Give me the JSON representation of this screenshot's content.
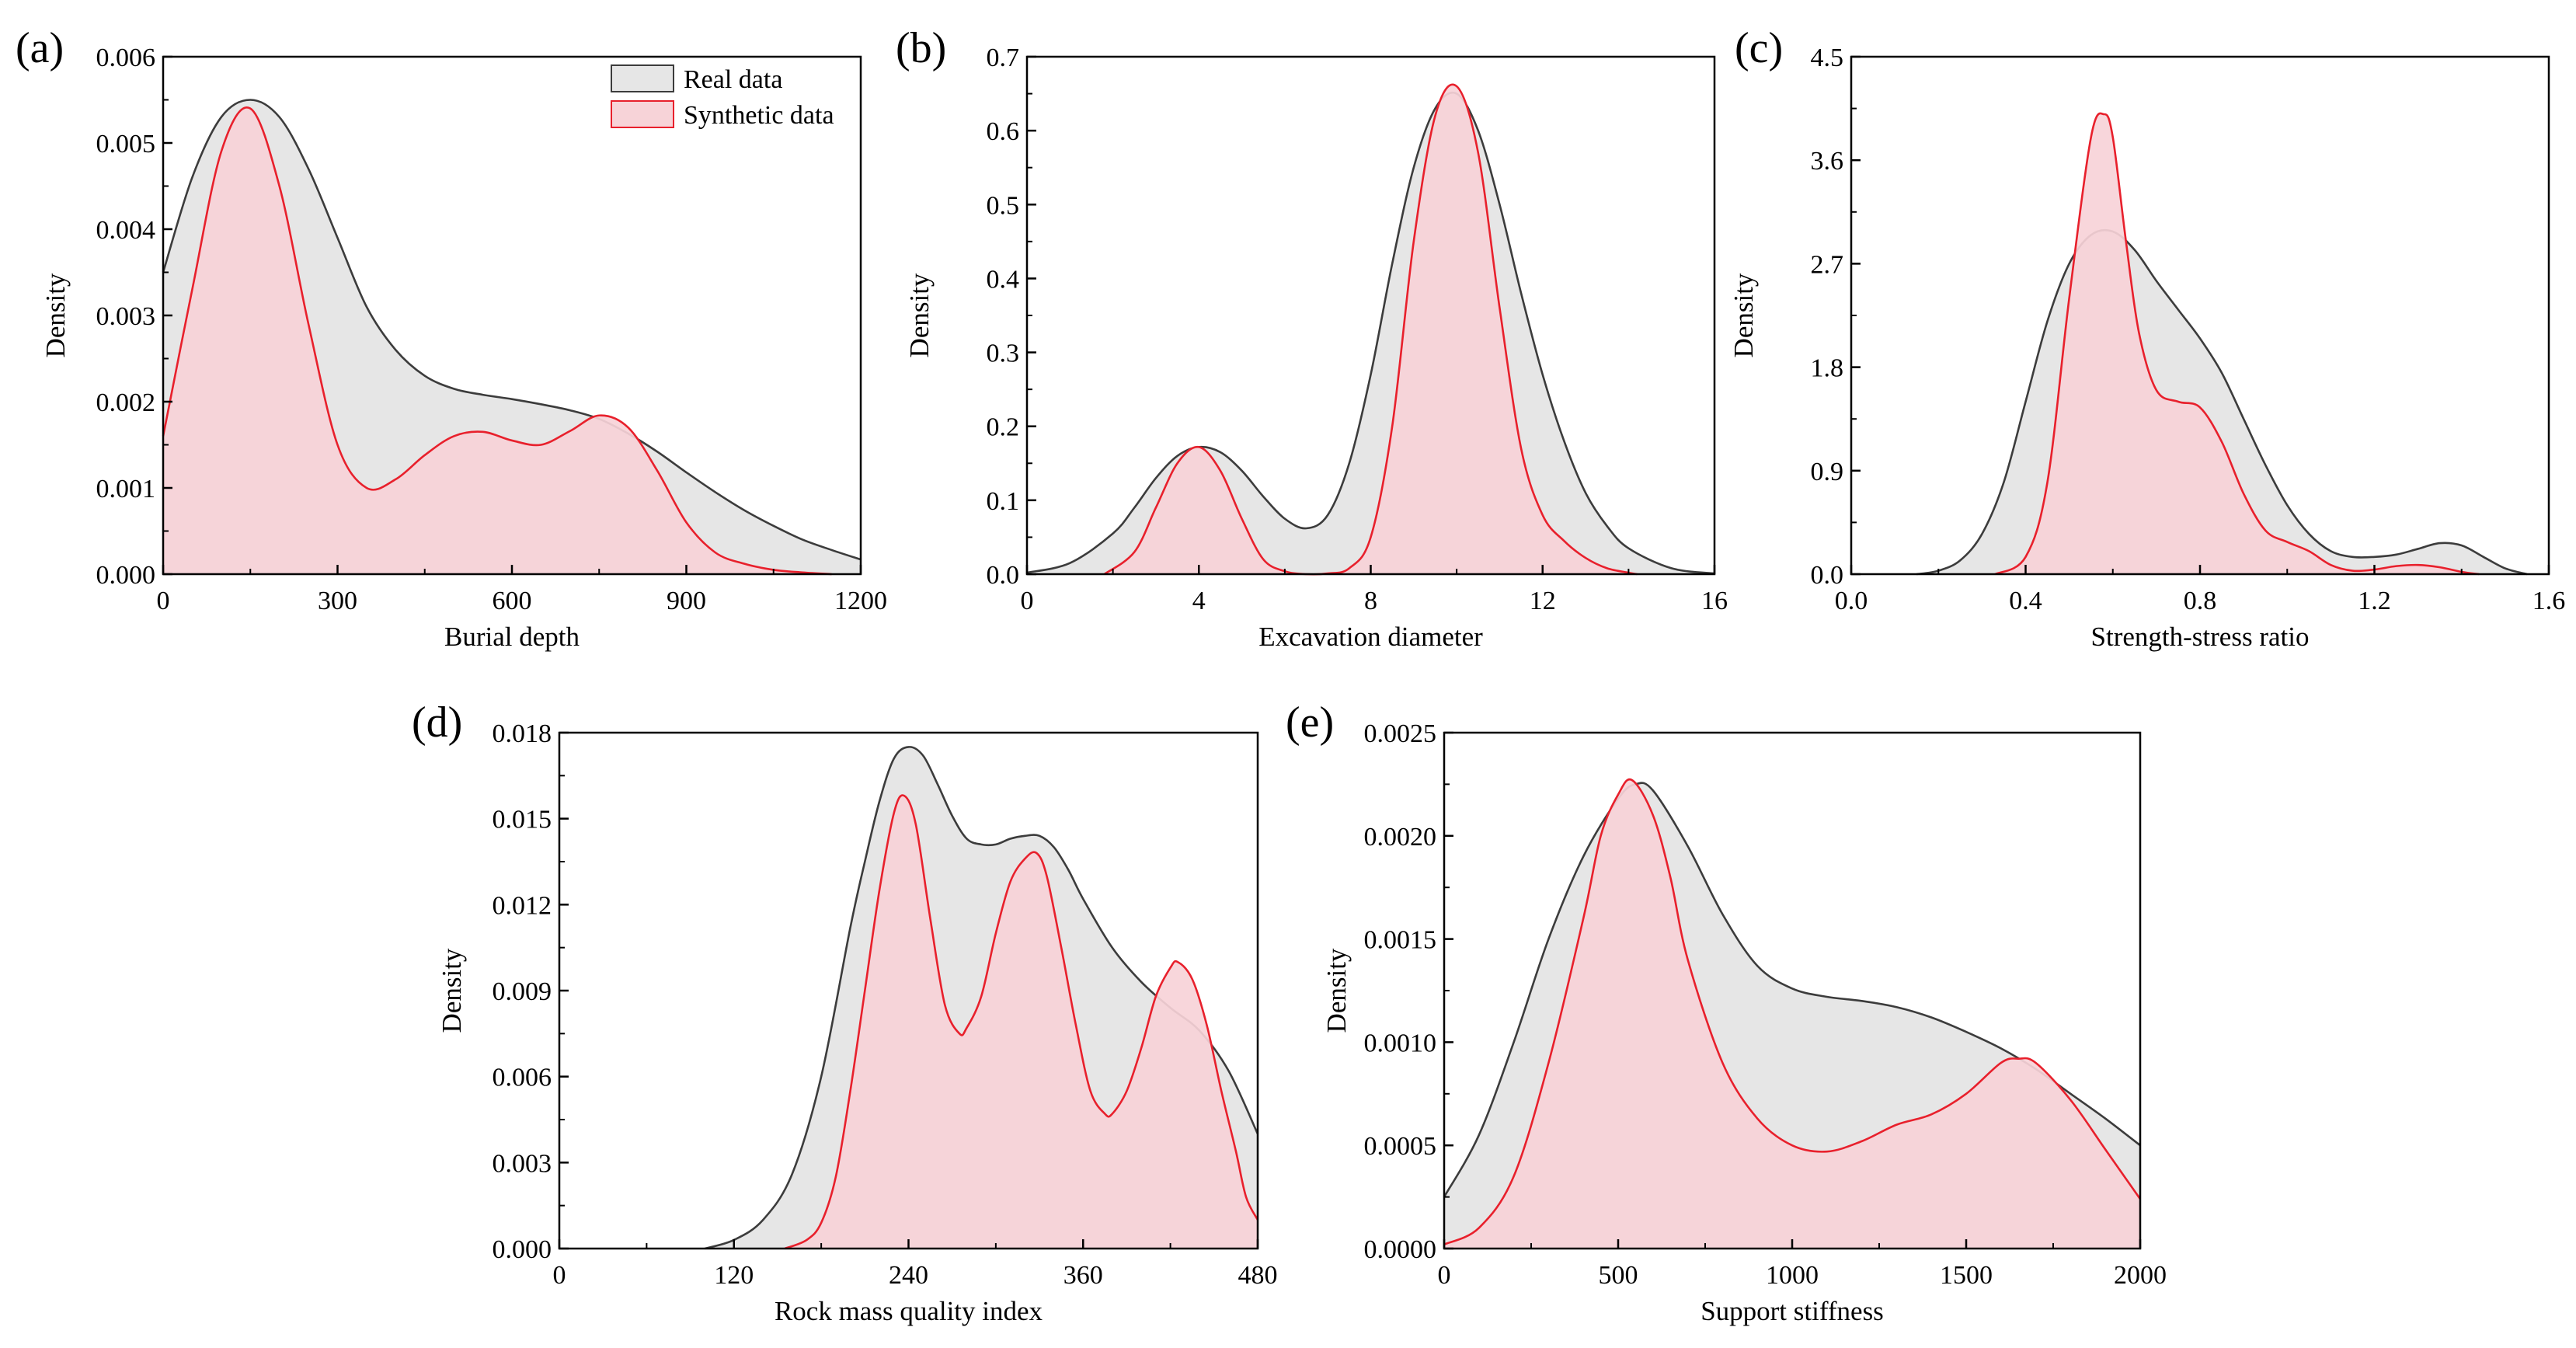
{
  "legend": {
    "real_label": "Real data",
    "synthetic_label": "Synthetic data"
  },
  "colors": {
    "real_fill": "#e6e6e6",
    "real_line": "#3c3c3c",
    "synthetic_fill": "#f7d3d8",
    "synthetic_line": "#e8202c"
  },
  "chart_data": [
    {
      "panel": "(a)",
      "type": "area",
      "title": "",
      "xlabel": "Burial depth",
      "ylabel": "Density",
      "xlim": [
        0,
        1200
      ],
      "ylim": [
        0,
        0.006
      ],
      "xticks": [
        0,
        300,
        600,
        900,
        1200
      ],
      "xtick_labels": [
        "0",
        "300",
        "600",
        "900",
        "1200"
      ],
      "yticks": [
        0,
        0.001,
        0.002,
        0.003,
        0.004,
        0.005,
        0.006
      ],
      "ytick_labels": [
        "0.000",
        "0.001",
        "0.002",
        "0.003",
        "0.004",
        "0.005",
        "0.006"
      ],
      "legend_position": "top-right",
      "series": [
        {
          "name": "Real data",
          "x": [
            0,
            50,
            100,
            150,
            200,
            250,
            300,
            350,
            400,
            450,
            500,
            550,
            600,
            650,
            700,
            750,
            800,
            850,
            900,
            950,
            1000,
            1050,
            1100,
            1150,
            1200
          ],
          "y": [
            0.0035,
            0.0046,
            0.0053,
            0.0055,
            0.0053,
            0.0047,
            0.0039,
            0.0031,
            0.0026,
            0.0023,
            0.00215,
            0.00208,
            0.00203,
            0.00197,
            0.0019,
            0.0018,
            0.00163,
            0.00142,
            0.00118,
            0.00095,
            0.00074,
            0.00056,
            0.0004,
            0.00028,
            0.00017
          ]
        },
        {
          "name": "Synthetic data",
          "x": [
            0,
            50,
            100,
            150,
            200,
            250,
            300,
            350,
            400,
            450,
            500,
            550,
            600,
            650,
            700,
            750,
            800,
            850,
            900,
            950,
            1000,
            1050,
            1100,
            1150
          ],
          "y": [
            0.0016,
            0.0033,
            0.0049,
            0.0054,
            0.0045,
            0.0029,
            0.0015,
            0.001,
            0.0011,
            0.00138,
            0.0016,
            0.00165,
            0.00155,
            0.0015,
            0.00166,
            0.00184,
            0.0017,
            0.0012,
            0.0006,
            0.00025,
            0.00012,
            5e-05,
            2e-05,
            0
          ]
        }
      ]
    },
    {
      "panel": "(b)",
      "type": "area",
      "title": "",
      "xlabel": "Excavation diameter",
      "ylabel": "Density",
      "xlim": [
        0,
        16
      ],
      "ylim": [
        0,
        0.7
      ],
      "xticks": [
        0,
        4,
        8,
        12,
        16
      ],
      "xtick_labels": [
        "0",
        "4",
        "8",
        "12",
        "16"
      ],
      "yticks": [
        0,
        0.1,
        0.2,
        0.3,
        0.4,
        0.5,
        0.6,
        0.7
      ],
      "ytick_labels": [
        "0.0",
        "0.1",
        "0.2",
        "0.3",
        "0.4",
        "0.5",
        "0.6",
        "0.7"
      ],
      "series": [
        {
          "name": "Real data",
          "x": [
            0,
            1,
            2,
            2.5,
            3,
            3.5,
            4,
            4.5,
            5,
            5.5,
            6,
            6.5,
            7,
            7.5,
            8,
            8.5,
            9,
            9.5,
            10,
            10.5,
            11,
            11.5,
            12,
            12.5,
            13,
            13.5,
            14,
            15,
            16
          ],
          "y": [
            0.002,
            0.015,
            0.055,
            0.09,
            0.13,
            0.16,
            0.172,
            0.165,
            0.14,
            0.105,
            0.075,
            0.062,
            0.08,
            0.15,
            0.27,
            0.42,
            0.55,
            0.63,
            0.65,
            0.6,
            0.5,
            0.38,
            0.27,
            0.18,
            0.11,
            0.065,
            0.035,
            0.008,
            0.001
          ]
        },
        {
          "name": "Synthetic data",
          "x": [
            1.8,
            2.5,
            3,
            3.5,
            4,
            4.5,
            5,
            5.5,
            6,
            6.5,
            7,
            7.5,
            8,
            8.5,
            9,
            9.5,
            10,
            10.5,
            11,
            11.5,
            12,
            12.5,
            13,
            13.5,
            14,
            14.2
          ],
          "y": [
            0,
            0.03,
            0.09,
            0.15,
            0.172,
            0.14,
            0.075,
            0.02,
            0.004,
            0,
            0.001,
            0.008,
            0.05,
            0.2,
            0.45,
            0.62,
            0.66,
            0.57,
            0.36,
            0.17,
            0.08,
            0.045,
            0.022,
            0.008,
            0.002,
            0
          ]
        }
      ]
    },
    {
      "panel": "(c)",
      "type": "area",
      "title": "",
      "xlabel": "Strength-stress ratio",
      "ylabel": "Density",
      "xlim": [
        0,
        1.6
      ],
      "ylim": [
        0,
        4.5
      ],
      "xticks": [
        0,
        0.4,
        0.8,
        1.2,
        1.6
      ],
      "xtick_labels": [
        "0.0",
        "0.4",
        "0.8",
        "1.2",
        "1.6"
      ],
      "yticks": [
        0,
        0.9,
        1.8,
        2.7,
        3.6,
        4.5
      ],
      "ytick_labels": [
        "0.0",
        "0.9",
        "1.8",
        "2.7",
        "3.6",
        "4.5"
      ],
      "series": [
        {
          "name": "Real data",
          "x": [
            0.15,
            0.2,
            0.25,
            0.3,
            0.35,
            0.4,
            0.45,
            0.5,
            0.55,
            0.6,
            0.65,
            0.7,
            0.75,
            0.8,
            0.85,
            0.9,
            0.95,
            1.0,
            1.05,
            1.1,
            1.15,
            1.2,
            1.25,
            1.3,
            1.35,
            1.4,
            1.45,
            1.5,
            1.55
          ],
          "y": [
            0,
            0.03,
            0.12,
            0.35,
            0.8,
            1.5,
            2.2,
            2.7,
            2.95,
            2.98,
            2.82,
            2.55,
            2.3,
            2.05,
            1.75,
            1.35,
            0.95,
            0.6,
            0.35,
            0.2,
            0.15,
            0.15,
            0.17,
            0.22,
            0.27,
            0.25,
            0.15,
            0.05,
            0
          ]
        },
        {
          "name": "Synthetic data",
          "x": [
            0.33,
            0.4,
            0.45,
            0.5,
            0.55,
            0.58,
            0.6,
            0.63,
            0.66,
            0.7,
            0.75,
            0.8,
            0.85,
            0.9,
            0.95,
            1.0,
            1.05,
            1.1,
            1.15,
            1.2,
            1.25,
            1.3,
            1.35,
            1.4,
            1.44
          ],
          "y": [
            0,
            0.15,
            0.8,
            2.4,
            3.8,
            4.0,
            3.8,
            2.9,
            2.1,
            1.6,
            1.5,
            1.45,
            1.15,
            0.7,
            0.38,
            0.28,
            0.2,
            0.08,
            0.03,
            0.04,
            0.07,
            0.08,
            0.06,
            0.02,
            0
          ]
        }
      ]
    },
    {
      "panel": "(d)",
      "type": "area",
      "title": "",
      "xlabel": "Rock mass quality index",
      "ylabel": "Density",
      "xlim": [
        0,
        480
      ],
      "ylim": [
        0,
        0.018
      ],
      "xticks": [
        0,
        120,
        240,
        360,
        480
      ],
      "xtick_labels": [
        "0",
        "120",
        "240",
        "360",
        "480"
      ],
      "yticks": [
        0,
        0.003,
        0.006,
        0.009,
        0.012,
        0.015,
        0.018
      ],
      "ytick_labels": [
        "0.000",
        "0.003",
        "0.006",
        "0.009",
        "0.012",
        "0.015",
        "0.018"
      ],
      "series": [
        {
          "name": "Real data",
          "x": [
            100,
            120,
            140,
            160,
            180,
            200,
            210,
            220,
            230,
            240,
            250,
            260,
            270,
            280,
            290,
            300,
            310,
            320,
            330,
            340,
            350,
            360,
            380,
            400,
            420,
            440,
            460,
            480
          ],
          "y": [
            0,
            0.0003,
            0.001,
            0.0026,
            0.006,
            0.0112,
            0.0135,
            0.0156,
            0.0171,
            0.0175,
            0.0172,
            0.0162,
            0.0151,
            0.0143,
            0.0141,
            0.0141,
            0.0143,
            0.0144,
            0.0144,
            0.014,
            0.0132,
            0.0122,
            0.0105,
            0.0093,
            0.0084,
            0.0076,
            0.0062,
            0.004
          ]
        },
        {
          "name": "Synthetic data",
          "x": [
            155,
            170,
            180,
            190,
            200,
            210,
            220,
            230,
            237,
            245,
            255,
            265,
            275,
            280,
            290,
            300,
            310,
            320,
            328,
            335,
            345,
            355,
            365,
            375,
            380,
            390,
            400,
            410,
            420,
            425,
            435,
            445,
            455,
            465,
            472,
            480
          ],
          "y": [
            0,
            0.0003,
            0.0009,
            0.0025,
            0.0055,
            0.009,
            0.0125,
            0.0152,
            0.0158,
            0.0148,
            0.0115,
            0.0085,
            0.0075,
            0.0077,
            0.0088,
            0.011,
            0.0128,
            0.0136,
            0.0138,
            0.013,
            0.0105,
            0.0078,
            0.0055,
            0.0047,
            0.0047,
            0.0055,
            0.007,
            0.0088,
            0.0098,
            0.01,
            0.0094,
            0.0078,
            0.0055,
            0.0034,
            0.0018,
            0.001
          ]
        }
      ]
    },
    {
      "panel": "(e)",
      "type": "area",
      "title": "",
      "xlabel": "Support stiffness",
      "ylabel": "Density",
      "xlim": [
        0,
        2000
      ],
      "ylim": [
        0,
        0.0025
      ],
      "xticks": [
        0,
        500,
        1000,
        1500,
        2000
      ],
      "xtick_labels": [
        "0",
        "500",
        "1000",
        "1500",
        "2000"
      ],
      "yticks": [
        0,
        0.0005,
        0.001,
        0.0015,
        0.002,
        0.0025
      ],
      "ytick_labels": [
        "0.0000",
        "0.0005",
        "0.0010",
        "0.0015",
        "0.0020",
        "0.0025"
      ],
      "series": [
        {
          "name": "Real data",
          "x": [
            0,
            100,
            200,
            300,
            400,
            500,
            550,
            600,
            700,
            800,
            900,
            1000,
            1100,
            1200,
            1300,
            1400,
            1500,
            1600,
            1700,
            1800,
            1900,
            2000
          ],
          "y": [
            0.00025,
            0.00055,
            0.001,
            0.0015,
            0.0019,
            0.00218,
            0.00225,
            0.00222,
            0.00195,
            0.00162,
            0.00137,
            0.00126,
            0.00122,
            0.0012,
            0.00117,
            0.00112,
            0.00105,
            0.00097,
            0.00087,
            0.00075,
            0.00063,
            0.0005
          ]
        },
        {
          "name": "Synthetic data",
          "x": [
            0,
            100,
            200,
            300,
            400,
            450,
            500,
            540,
            600,
            650,
            700,
            800,
            900,
            1000,
            1100,
            1200,
            1300,
            1400,
            1500,
            1600,
            1650,
            1700,
            1800,
            1900,
            2000
          ],
          "y": [
            2e-05,
            0.0001,
            0.00035,
            0.0009,
            0.0016,
            0.002,
            0.0022,
            0.00227,
            0.0021,
            0.0018,
            0.0014,
            0.0009,
            0.00063,
            0.0005,
            0.00047,
            0.00052,
            0.0006,
            0.00065,
            0.00075,
            0.0009,
            0.00092,
            0.0009,
            0.00072,
            0.00048,
            0.00024
          ]
        }
      ]
    }
  ]
}
